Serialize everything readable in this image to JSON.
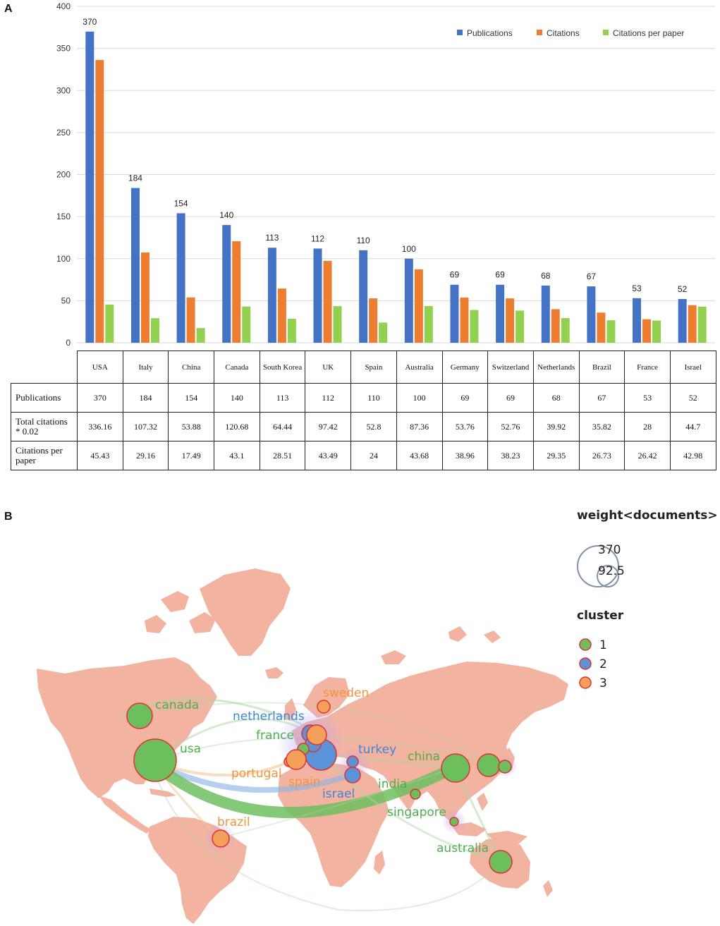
{
  "panel_a_label": "A",
  "panel_b_label": "B",
  "chart_data": {
    "type": "bar",
    "title": "",
    "xlabel": "",
    "ylabel": "",
    "ylim": [
      0,
      400
    ],
    "yticks": [
      0,
      50,
      100,
      150,
      200,
      250,
      300,
      350,
      400
    ],
    "categories": [
      "USA",
      "Italy",
      "China",
      "Canada",
      "South Korea",
      "UK",
      "Spain",
      "Australia",
      "Germany",
      "Switzerland",
      "Netherlands",
      "Brazil",
      "France",
      "Israel"
    ],
    "series": [
      {
        "name": "Publications",
        "color": "#4472C4",
        "values": [
          370,
          184,
          154,
          140,
          113,
          112,
          110,
          100,
          69,
          69,
          68,
          67,
          53,
          52
        ]
      },
      {
        "name": "Citations",
        "color": "#ED7D31",
        "values": [
          336.16,
          107.32,
          53.88,
          120.68,
          64.44,
          97.42,
          52.8,
          87.36,
          53.76,
          52.76,
          39.92,
          35.82,
          28,
          44.7
        ]
      },
      {
        "name": "Citations per paper",
        "color": "#92D050",
        "values": [
          45.43,
          29.16,
          17.49,
          43.1,
          28.51,
          43.49,
          24,
          43.68,
          38.96,
          38.23,
          29.35,
          26.73,
          26.42,
          42.98
        ]
      }
    ],
    "data_labels": [
      "370",
      "184",
      "154",
      "140",
      "113",
      "112",
      "110",
      "100",
      "69",
      "69",
      "68",
      "67",
      "53",
      "52"
    ],
    "legend_position": "top-right"
  },
  "table": {
    "rows": [
      {
        "label_lines": [
          "Publications"
        ],
        "values": [
          "370",
          "184",
          "154",
          "140",
          "113",
          "112",
          "110",
          "100",
          "69",
          "69",
          "68",
          "67",
          "53",
          "52"
        ]
      },
      {
        "label_lines": [
          "Total citations",
          "* 0.02"
        ],
        "values": [
          "336.16",
          "107.32",
          "53.88",
          "120.68",
          "64.44",
          "97.42",
          "52.8",
          "87.36",
          "53.76",
          "52.76",
          "39.92",
          "35.82",
          "28",
          "44.7"
        ]
      },
      {
        "label_lines": [
          "Citations per",
          "paper"
        ],
        "values": [
          "45.43",
          "29.16",
          "17.49",
          "43.1",
          "28.51",
          "43.49",
          "24",
          "43.68",
          "38.96",
          "38.23",
          "29.35",
          "26.73",
          "26.42",
          "42.98"
        ]
      }
    ]
  },
  "map": {
    "land_color": "#F2B3A0",
    "countries": [
      {
        "name": "canada",
        "cluster": 1
      },
      {
        "name": "usa",
        "cluster": 1
      },
      {
        "name": "netherlands",
        "cluster": 2
      },
      {
        "name": "france",
        "cluster": 1
      },
      {
        "name": "portugal",
        "cluster": 3
      },
      {
        "name": "spain",
        "cluster": 3
      },
      {
        "name": "sweden",
        "cluster": 3
      },
      {
        "name": "turkey",
        "cluster": 2
      },
      {
        "name": "israel",
        "cluster": 2
      },
      {
        "name": "india",
        "cluster": 1
      },
      {
        "name": "china",
        "cluster": 1
      },
      {
        "name": "singapore",
        "cluster": 1
      },
      {
        "name": "australia",
        "cluster": 1
      },
      {
        "name": "brazil",
        "cluster": 3
      }
    ],
    "legend": {
      "weight_title": "weight<documents>",
      "weight_max": "370",
      "weight_mid": "92.5",
      "cluster_title": "cluster",
      "clusters": [
        {
          "label": "1",
          "color": "#6DBE5C"
        },
        {
          "label": "2",
          "color": "#5B93D9"
        },
        {
          "label": "3",
          "color": "#F2A05A"
        }
      ]
    },
    "cluster_colors": {
      "1": "#6DBE5C",
      "2": "#5B93D9",
      "3": "#F2A05A"
    },
    "cluster_text_colors": {
      "1": "#4CAF50",
      "2": "#3F86D6",
      "3": "#F0953A"
    }
  }
}
